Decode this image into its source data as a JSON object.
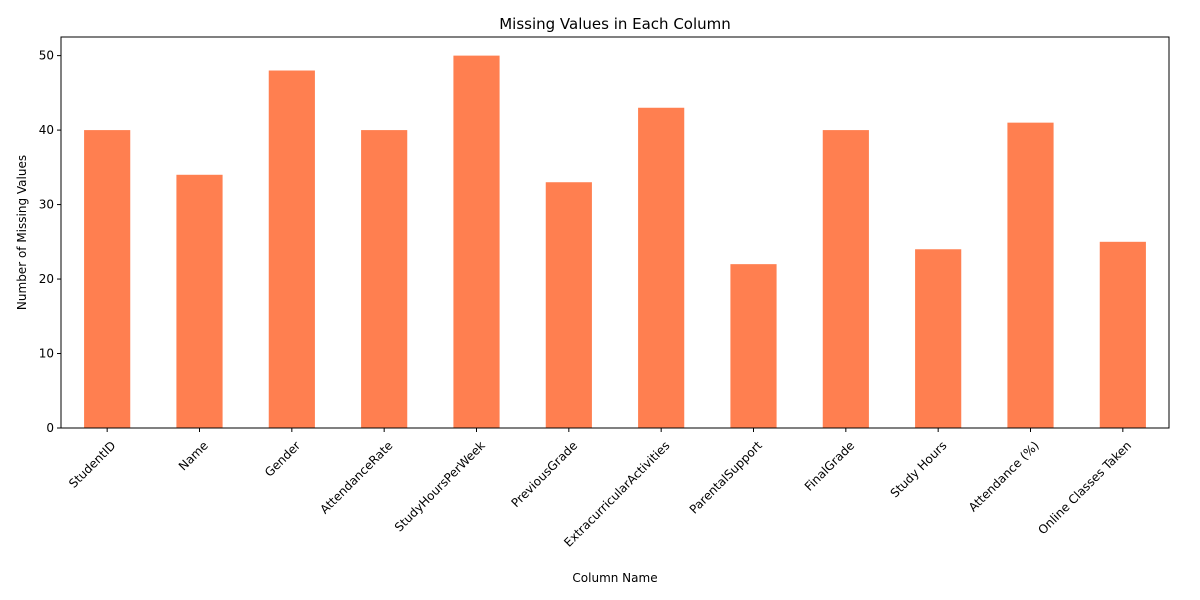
{
  "chart_data": {
    "type": "bar",
    "title": "Missing Values in Each Column",
    "xlabel": "Column Name",
    "ylabel": "Number of Missing Values",
    "categories": [
      "StudentID",
      "Name",
      "Gender",
      "AttendanceRate",
      "StudyHoursPerWeek",
      "PreviousGrade",
      "ExtracurricularActivities",
      "ParentalSupport",
      "FinalGrade",
      "Study Hours",
      "Attendance (%)",
      "Online Classes Taken"
    ],
    "values": [
      40,
      34,
      48,
      40,
      50,
      33,
      43,
      22,
      40,
      24,
      41,
      25
    ],
    "ylim": [
      0,
      52.5
    ],
    "yticks": [
      0,
      10,
      20,
      30,
      40,
      50
    ],
    "ytick_labels": [
      "0",
      "10",
      "20",
      "30",
      "40",
      "50"
    ],
    "bar_color": "#ff7f50",
    "grid": false,
    "legend": "none"
  }
}
